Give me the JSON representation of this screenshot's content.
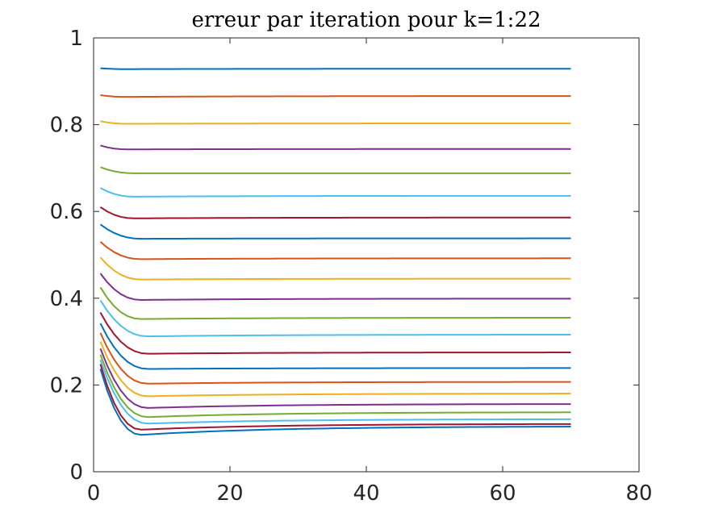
{
  "chart_data": {
    "type": "line",
    "title": "erreur par iteration pour k=1:22",
    "xlabel": "",
    "ylabel": "",
    "xlim": [
      0,
      80
    ],
    "ylim": [
      0,
      1
    ],
    "x_ticks": [
      0,
      20,
      40,
      60,
      80
    ],
    "x_tick_labels": [
      "0",
      "20",
      "40",
      "60",
      "80"
    ],
    "y_ticks": [
      0,
      0.2,
      0.4,
      0.6,
      0.8,
      1
    ],
    "y_tick_labels": [
      "0",
      "0.2",
      "0.4",
      "0.6",
      "0.8",
      "1"
    ],
    "grid": false,
    "legend": "none",
    "x_range": [
      1,
      70
    ],
    "series": [
      {
        "color": "#0072BD",
        "start": 0.93,
        "min": 0.928,
        "final": 0.929,
        "min_at": 5
      },
      {
        "color": "#D95319",
        "start": 0.868,
        "min": 0.864,
        "final": 0.866,
        "min_at": 5
      },
      {
        "color": "#EDB120",
        "start": 0.808,
        "min": 0.802,
        "final": 0.803,
        "min_at": 5
      },
      {
        "color": "#7E2F8E",
        "start": 0.752,
        "min": 0.743,
        "final": 0.744,
        "min_at": 5
      },
      {
        "color": "#77AC30",
        "start": 0.702,
        "min": 0.688,
        "final": 0.688,
        "min_at": 6
      },
      {
        "color": "#4DBEEE",
        "start": 0.654,
        "min": 0.634,
        "final": 0.636,
        "min_at": 6
      },
      {
        "color": "#A2142F",
        "start": 0.61,
        "min": 0.584,
        "final": 0.586,
        "min_at": 6
      },
      {
        "color": "#0072BD",
        "start": 0.57,
        "min": 0.537,
        "final": 0.538,
        "min_at": 7
      },
      {
        "color": "#D95319",
        "start": 0.53,
        "min": 0.49,
        "final": 0.492,
        "min_at": 7
      },
      {
        "color": "#EDB120",
        "start": 0.494,
        "min": 0.443,
        "final": 0.445,
        "min_at": 7
      },
      {
        "color": "#7E2F8E",
        "start": 0.457,
        "min": 0.396,
        "final": 0.399,
        "min_at": 7
      },
      {
        "color": "#77AC30",
        "start": 0.425,
        "min": 0.352,
        "final": 0.355,
        "min_at": 7
      },
      {
        "color": "#4DBEEE",
        "start": 0.395,
        "min": 0.312,
        "final": 0.316,
        "min_at": 8
      },
      {
        "color": "#A2142F",
        "start": 0.367,
        "min": 0.272,
        "final": 0.275,
        "min_at": 8
      },
      {
        "color": "#0072BD",
        "start": 0.342,
        "min": 0.237,
        "final": 0.239,
        "min_at": 8
      },
      {
        "color": "#D95319",
        "start": 0.32,
        "min": 0.203,
        "final": 0.207,
        "min_at": 8
      },
      {
        "color": "#EDB120",
        "start": 0.3,
        "min": 0.174,
        "final": 0.18,
        "min_at": 8
      },
      {
        "color": "#7E2F8E",
        "start": 0.284,
        "min": 0.147,
        "final": 0.156,
        "min_at": 8
      },
      {
        "color": "#77AC30",
        "start": 0.27,
        "min": 0.126,
        "final": 0.137,
        "min_at": 8
      },
      {
        "color": "#4DBEEE",
        "start": 0.258,
        "min": 0.111,
        "final": 0.121,
        "min_at": 8
      },
      {
        "color": "#A2142F",
        "start": 0.248,
        "min": 0.097,
        "final": 0.11,
        "min_at": 7
      },
      {
        "color": "#0072BD",
        "start": 0.237,
        "min": 0.085,
        "final": 0.104,
        "min_at": 7
      }
    ]
  }
}
